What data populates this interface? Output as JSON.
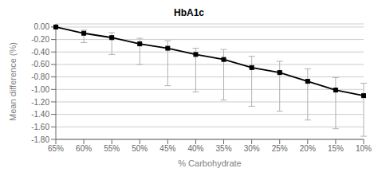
{
  "chart_data": {
    "type": "line",
    "title": "HbA1c",
    "xlabel": "% Carbohydrate",
    "ylabel": "Mean difference (%)",
    "categories": [
      "65%",
      "60%",
      "55%",
      "50%",
      "45%",
      "40%",
      "35%",
      "30%",
      "25%",
      "20%",
      "15%",
      "10%"
    ],
    "values": [
      0.0,
      -0.1,
      -0.17,
      -0.27,
      -0.34,
      -0.44,
      -0.52,
      -0.65,
      -0.73,
      -0.87,
      -1.01,
      -1.1
    ],
    "error_upper": [
      0.01,
      0.05,
      0.08,
      0.09,
      0.12,
      0.1,
      0.16,
      0.18,
      0.18,
      0.2,
      0.2,
      0.2
    ],
    "error_lower": [
      0.01,
      0.15,
      0.27,
      0.33,
      0.6,
      0.6,
      0.65,
      0.62,
      0.62,
      0.62,
      0.62,
      0.65
    ],
    "ylim": [
      -1.8,
      0.05
    ],
    "yticks": [
      {
        "value": 0.0,
        "label": "0.00"
      },
      {
        "value": -0.2,
        "label": "-0.20"
      },
      {
        "value": -0.4,
        "label": "-0.40"
      },
      {
        "value": -0.6,
        "label": "-0.60"
      },
      {
        "value": -0.8,
        "label": "-0.80"
      },
      {
        "value": -1.0,
        "label": "-1.00"
      },
      {
        "value": -1.2,
        "label": "-1.20"
      },
      {
        "value": -1.4,
        "label": "-1.40"
      },
      {
        "value": -1.6,
        "label": "-1.60"
      },
      {
        "value": -1.8,
        "label": "-1.80"
      }
    ],
    "color": "#000000",
    "marker": "square",
    "grid": true
  }
}
